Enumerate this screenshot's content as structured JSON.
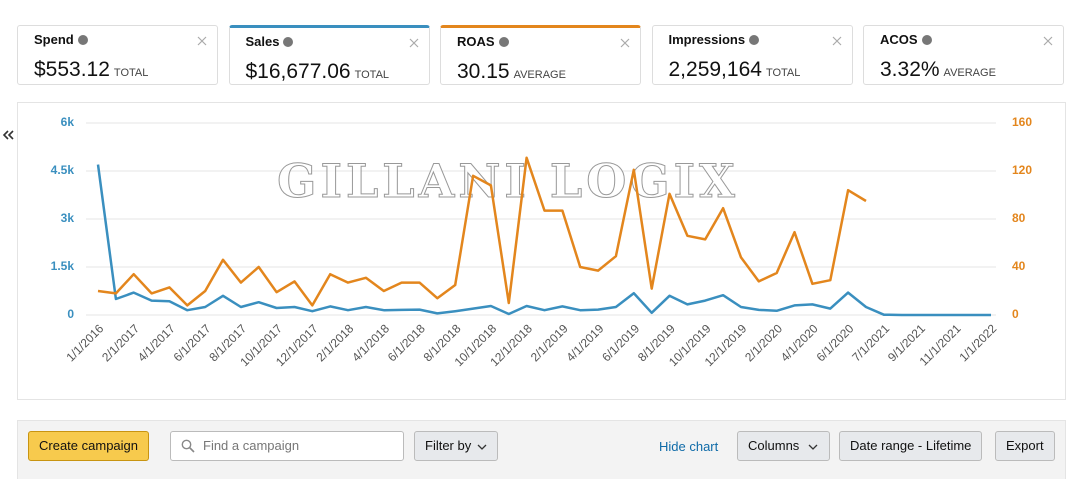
{
  "metrics": [
    {
      "label": "Spend",
      "value": "$553.12",
      "unit": "TOTAL"
    },
    {
      "label": "Sales",
      "value": "$16,677.06",
      "unit": "TOTAL"
    },
    {
      "label": "ROAS",
      "value": "30.15",
      "unit": "AVERAGE"
    },
    {
      "label": "Impressions",
      "value": "2,259,164",
      "unit": "TOTAL"
    },
    {
      "label": "ACOS",
      "value": "3.32%",
      "unit": "AVERAGE"
    }
  ],
  "chart_data": {
    "type": "line",
    "watermark": "GILLANI LOGIX",
    "categories": [
      "1/1/2016",
      null,
      "2/1/2017",
      null,
      "4/1/2017",
      null,
      "6/1/2017",
      null,
      "8/1/2017",
      null,
      "10/1/2017",
      null,
      "12/1/2017",
      null,
      "2/1/2018",
      null,
      "4/1/2018",
      null,
      "6/1/2018",
      null,
      "8/1/2018",
      null,
      "10/1/2018",
      null,
      "12/1/2018",
      null,
      "2/1/2019",
      null,
      "4/1/2019",
      null,
      "6/1/2019",
      null,
      "8/1/2019",
      null,
      "10/1/2019",
      null,
      "12/1/2019",
      null,
      "2/1/2020",
      null,
      "4/1/2020",
      null,
      "6/1/2020",
      null,
      "7/1/2021",
      null,
      "9/1/2021",
      null,
      "11/1/2021",
      null,
      "1/1/2022"
    ],
    "series": [
      {
        "color": "#3a8fbf",
        "axis": "y",
        "values": [
          4700,
          500,
          700,
          450,
          430,
          150,
          250,
          600,
          250,
          400,
          220,
          250,
          120,
          270,
          150,
          250,
          150,
          160,
          170,
          50,
          120,
          200,
          280,
          30,
          280,
          150,
          270,
          150,
          170,
          250,
          680,
          70,
          600,
          330,
          450,
          620,
          250,
          160,
          130,
          300,
          330,
          200,
          700,
          250,
          10,
          0,
          0,
          0,
          0,
          0,
          0
        ]
      },
      {
        "color": "#e3861d",
        "axis": "y2",
        "values": [
          20,
          18,
          34,
          18,
          23,
          8,
          20,
          46,
          27,
          40,
          19,
          28,
          8,
          34,
          27,
          31,
          20,
          27,
          27,
          14,
          25,
          116,
          108,
          10,
          131,
          87,
          87,
          40,
          37,
          49,
          121,
          22,
          101,
          66,
          63,
          89,
          48,
          28,
          35,
          69,
          26,
          29,
          104,
          95,
          null,
          null,
          null,
          null,
          null,
          null,
          null
        ]
      }
    ],
    "ylim": [
      0,
      6000
    ],
    "yticks": [
      0,
      {
        "value": 1500,
        "label": "1.5k"
      },
      {
        "value": 3000,
        "label": "3k"
      },
      {
        "value": 4500,
        "label": "4.5k"
      },
      {
        "value": 6000,
        "label": "6k"
      }
    ],
    "y2lim": [
      0,
      160
    ],
    "y2ticks": [
      0,
      40,
      80,
      120,
      160
    ],
    "grid": true
  },
  "toolbar": {
    "create": "Create campaign",
    "search": "Find a campaign",
    "filter": "Filter by",
    "hide": "Hide chart",
    "columns": "Columns",
    "date": "Date range - Lifetime",
    "export": "Export"
  }
}
